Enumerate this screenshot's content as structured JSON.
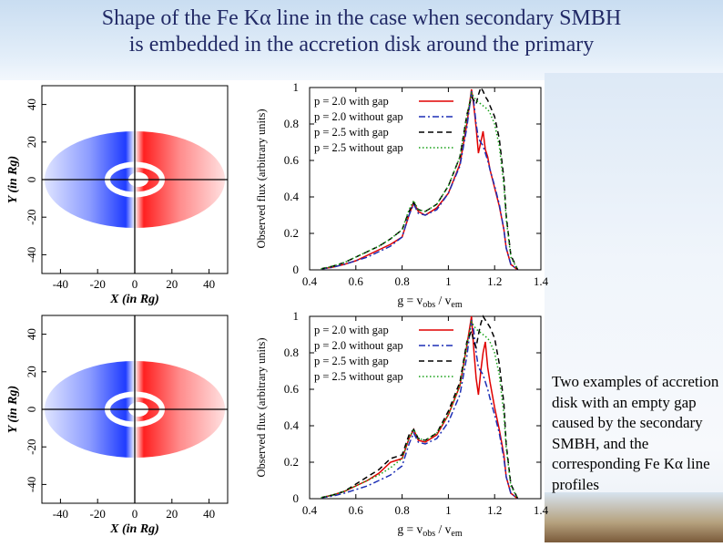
{
  "slide": {
    "title_line1": "Shape of the Fe Kα line in the case when secondary SMBH",
    "title_line2": "is embedded in the accretion disk around the primary",
    "caption": "Two examples of accretion disk with an empty gap caused by the secondary SMBH, and the corresponding Fe Kα line profiles"
  },
  "disk_maps": {
    "xlabel": "X (in Rg)",
    "ylabel": "Y (in Rg)",
    "x_ticks": [
      "-40",
      "-20",
      "0",
      "20",
      "40"
    ],
    "y_ticks": [
      "40",
      "20",
      "0",
      "-20",
      "-40"
    ],
    "colors": {
      "approaching": "#1f3cff",
      "receding": "#ff2020"
    }
  },
  "chart_data": [
    {
      "type": "line",
      "xlabel": "g = vobs / vem",
      "ylabel": "Observed flux (arbitrary units)",
      "xlim": [
        0.4,
        1.4
      ],
      "ylim": [
        0,
        1
      ],
      "x_ticks": [
        "0.4",
        "0.6",
        "0.8",
        "1",
        "1.2",
        "1.4"
      ],
      "y_ticks": [
        "0",
        "0.2",
        "0.4",
        "0.6",
        "0.8",
        "1"
      ],
      "legend_position": "top-right",
      "x": [
        0.45,
        0.5,
        0.55,
        0.6,
        0.65,
        0.7,
        0.75,
        0.8,
        0.83,
        0.85,
        0.87,
        0.9,
        0.95,
        1.0,
        1.05,
        1.08,
        1.1,
        1.11,
        1.12,
        1.13,
        1.14,
        1.15,
        1.16,
        1.17,
        1.18,
        1.2,
        1.22,
        1.24,
        1.25,
        1.27,
        1.3
      ],
      "series": [
        {
          "name": "p = 2.0 with gap",
          "color": "#e00000",
          "dash": "",
          "values": [
            0.005,
            0.015,
            0.03,
            0.05,
            0.08,
            0.11,
            0.14,
            0.18,
            0.3,
            0.37,
            0.32,
            0.3,
            0.34,
            0.42,
            0.58,
            0.8,
            0.99,
            0.9,
            0.78,
            0.64,
            0.7,
            0.76,
            0.66,
            0.62,
            0.55,
            0.45,
            0.35,
            0.22,
            0.12,
            0.03,
            0.0
          ]
        },
        {
          "name": "p = 2.0 without gap",
          "color": "#1d2fb5",
          "dash": "7,3,2,3",
          "values": [
            0.005,
            0.014,
            0.03,
            0.05,
            0.07,
            0.1,
            0.13,
            0.18,
            0.3,
            0.36,
            0.31,
            0.3,
            0.33,
            0.42,
            0.57,
            0.78,
            0.98,
            0.92,
            0.8,
            0.72,
            0.7,
            0.68,
            0.64,
            0.6,
            0.55,
            0.46,
            0.36,
            0.22,
            0.12,
            0.03,
            0.0
          ]
        },
        {
          "name": "p = 2.5 with gap",
          "color": "#000000",
          "dash": "6,4",
          "values": [
            0.006,
            0.02,
            0.04,
            0.07,
            0.1,
            0.13,
            0.17,
            0.22,
            0.32,
            0.37,
            0.33,
            0.32,
            0.36,
            0.46,
            0.62,
            0.85,
            0.95,
            0.93,
            0.91,
            0.96,
            1.0,
            0.98,
            0.95,
            0.93,
            0.9,
            0.84,
            0.72,
            0.5,
            0.3,
            0.08,
            0.0
          ]
        },
        {
          "name": "p = 2.5 without gap",
          "color": "#17a017",
          "dash": "1.5,2.5",
          "values": [
            0.006,
            0.02,
            0.04,
            0.07,
            0.1,
            0.13,
            0.17,
            0.22,
            0.33,
            0.38,
            0.33,
            0.32,
            0.36,
            0.46,
            0.62,
            0.84,
            0.97,
            0.95,
            0.93,
            0.92,
            0.91,
            0.9,
            0.89,
            0.88,
            0.86,
            0.8,
            0.68,
            0.46,
            0.28,
            0.07,
            0.0
          ]
        }
      ]
    },
    {
      "type": "line",
      "xlabel": "g = vobs / vem",
      "ylabel": "Observed flux (arbitrary units)",
      "xlim": [
        0.4,
        1.4
      ],
      "ylim": [
        0,
        1
      ],
      "x_ticks": [
        "0.4",
        "0.6",
        "0.8",
        "1",
        "1.2",
        "1.4"
      ],
      "y_ticks": [
        "0",
        "0.2",
        "0.4",
        "0.6",
        "0.8",
        "1"
      ],
      "legend_position": "top-right",
      "x": [
        0.45,
        0.5,
        0.55,
        0.6,
        0.65,
        0.7,
        0.75,
        0.8,
        0.83,
        0.85,
        0.87,
        0.9,
        0.95,
        1.0,
        1.05,
        1.08,
        1.1,
        1.11,
        1.12,
        1.13,
        1.14,
        1.15,
        1.16,
        1.17,
        1.18,
        1.2,
        1.22,
        1.24,
        1.25,
        1.27,
        1.3
      ],
      "series": [
        {
          "name": "p = 2.0 with gap",
          "color": "#e00000",
          "dash": "",
          "values": [
            0.005,
            0.02,
            0.04,
            0.07,
            0.1,
            0.14,
            0.2,
            0.22,
            0.33,
            0.38,
            0.32,
            0.31,
            0.35,
            0.46,
            0.62,
            0.84,
            1.0,
            0.82,
            0.66,
            0.57,
            0.7,
            0.8,
            0.86,
            0.72,
            0.64,
            0.5,
            0.38,
            0.24,
            0.12,
            0.03,
            0.0
          ]
        },
        {
          "name": "p = 2.0 without gap",
          "color": "#1d2fb5",
          "dash": "7,3,2,3",
          "values": [
            0.005,
            0.014,
            0.03,
            0.05,
            0.07,
            0.1,
            0.13,
            0.18,
            0.3,
            0.36,
            0.31,
            0.3,
            0.33,
            0.42,
            0.57,
            0.78,
            0.98,
            0.92,
            0.8,
            0.72,
            0.7,
            0.68,
            0.64,
            0.6,
            0.55,
            0.46,
            0.36,
            0.22,
            0.12,
            0.03,
            0.0
          ]
        },
        {
          "name": "p = 2.5 with gap",
          "color": "#000000",
          "dash": "6,4",
          "values": [
            0.006,
            0.02,
            0.04,
            0.08,
            0.12,
            0.16,
            0.22,
            0.24,
            0.35,
            0.38,
            0.33,
            0.32,
            0.36,
            0.48,
            0.64,
            0.86,
            0.92,
            0.86,
            0.83,
            0.9,
            0.96,
            1.0,
            0.98,
            0.96,
            0.94,
            0.88,
            0.74,
            0.52,
            0.3,
            0.08,
            0.0
          ]
        },
        {
          "name": "p = 2.5 without gap",
          "color": "#17a017",
          "dash": "1.5,2.5",
          "values": [
            0.006,
            0.02,
            0.04,
            0.07,
            0.1,
            0.13,
            0.17,
            0.22,
            0.33,
            0.38,
            0.33,
            0.32,
            0.36,
            0.46,
            0.62,
            0.84,
            0.97,
            0.95,
            0.93,
            0.92,
            0.91,
            0.9,
            0.89,
            0.88,
            0.86,
            0.8,
            0.68,
            0.46,
            0.28,
            0.07,
            0.0
          ]
        }
      ]
    }
  ]
}
